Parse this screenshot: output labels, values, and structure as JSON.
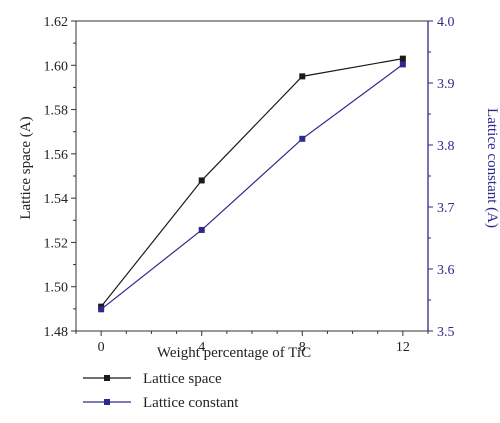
{
  "chart_data": {
    "type": "line",
    "xlabel": "Weight percentage of TiC",
    "ylabel": "Lattice space (A)",
    "y2label": "Lattice constant (A)",
    "x": [
      0,
      4,
      8,
      12
    ],
    "xticks": [
      "0",
      "4",
      "8",
      "12"
    ],
    "xlim": [
      -1,
      13
    ],
    "ylim": [
      1.48,
      1.62
    ],
    "yticks": [
      "1.48",
      "1.50",
      "1.52",
      "1.54",
      "1.56",
      "1.58",
      "1.60",
      "1.62"
    ],
    "y2lim": [
      3.5,
      4.0
    ],
    "y2ticks": [
      "3.5",
      "3.6",
      "3.7",
      "3.8",
      "3.9",
      "4.0"
    ],
    "series": [
      {
        "name": "Lattice space",
        "axis": "left",
        "color": "#1a1a1a",
        "values": [
          1.491,
          1.548,
          1.595,
          1.603
        ]
      },
      {
        "name": "Lattice constant",
        "axis": "right",
        "color": "#2e2a8c",
        "values": [
          3.535,
          3.663,
          3.81,
          3.93
        ]
      }
    ],
    "legend_position": "bottom-left",
    "grid": false
  }
}
